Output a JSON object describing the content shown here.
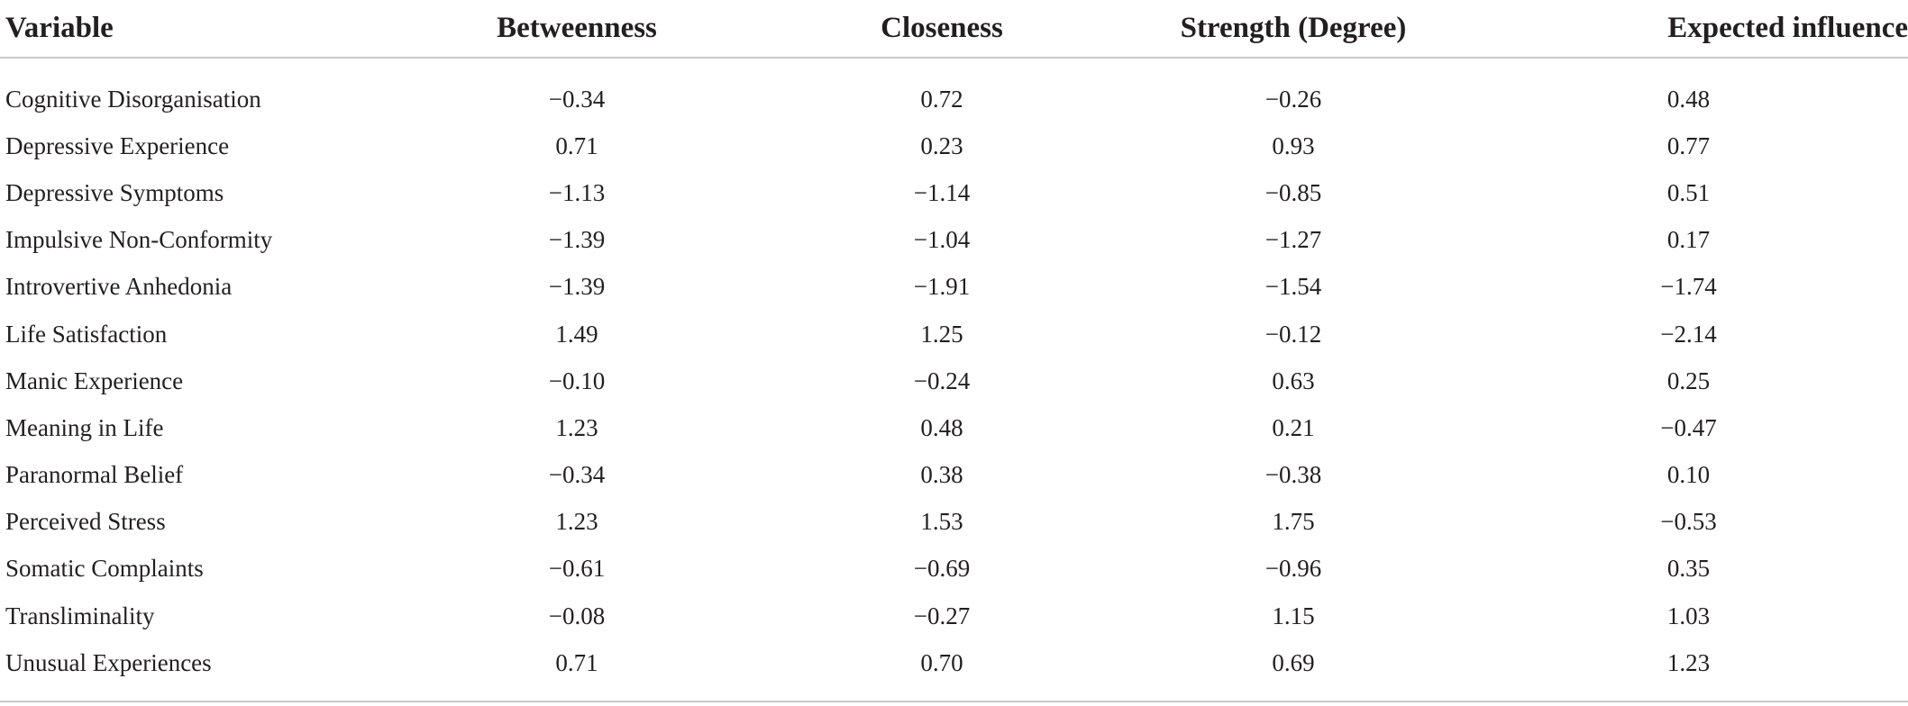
{
  "table": {
    "headers": [
      "Variable",
      "Betweenness",
      "Closeness",
      "Strength (Degree)",
      "Expected influence"
    ],
    "rows": [
      [
        "Cognitive Disorganisation",
        "−0.34",
        "0.72",
        "−0.26",
        "0.48"
      ],
      [
        "Depressive Experience",
        "0.71",
        "0.23",
        "0.93",
        "0.77"
      ],
      [
        "Depressive Symptoms",
        "−1.13",
        "−1.14",
        "−0.85",
        "0.51"
      ],
      [
        "Impulsive Non-Conformity",
        "−1.39",
        "−1.04",
        "−1.27",
        "0.17"
      ],
      [
        "Introvertive Anhedonia",
        "−1.39",
        "−1.91",
        "−1.54",
        "−1.74"
      ],
      [
        "Life Satisfaction",
        "1.49",
        "1.25",
        "−0.12",
        "−2.14"
      ],
      [
        "Manic Experience",
        "−0.10",
        "−0.24",
        "0.63",
        "0.25"
      ],
      [
        "Meaning in Life",
        "1.23",
        "0.48",
        "0.21",
        "−0.47"
      ],
      [
        "Paranormal Belief",
        "−0.34",
        "0.38",
        "−0.38",
        "0.10"
      ],
      [
        "Perceived Stress",
        "1.23",
        "1.53",
        "1.75",
        "−0.53"
      ],
      [
        "Somatic Complaints",
        "−0.61",
        "−0.69",
        "−0.96",
        "0.35"
      ],
      [
        "Transliminality",
        "−0.08",
        "−0.27",
        "1.15",
        "1.03"
      ],
      [
        "Unusual Experiences",
        "0.71",
        "0.70",
        "0.69",
        "1.23"
      ]
    ]
  }
}
